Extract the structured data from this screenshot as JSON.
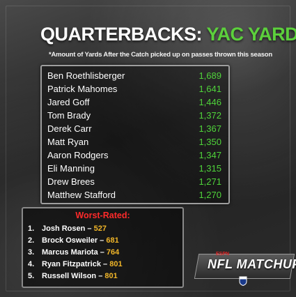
{
  "title": {
    "main": "QUARTERBACKS:",
    "accent": "YAC YARDS"
  },
  "subtitle": "*Amount of Yards After the Catch picked up on passes thrown this season",
  "top_list": [
    {
      "name": "Ben Roethlisberger",
      "value": "1,689"
    },
    {
      "name": "Patrick Mahomes",
      "value": "1,641"
    },
    {
      "name": "Jared Goff",
      "value": "1,446"
    },
    {
      "name": "Tom Brady",
      "value": "1,372"
    },
    {
      "name": "Derek Carr",
      "value": "1,367"
    },
    {
      "name": "Matt Ryan",
      "value": "1,350"
    },
    {
      "name": "Aaron Rodgers",
      "value": "1,347"
    },
    {
      "name": "Eli Manning",
      "value": "1,315"
    },
    {
      "name": "Drew Brees",
      "value": "1,271"
    },
    {
      "name": "Matthew Stafford",
      "value": "1,270"
    }
  ],
  "worst": {
    "title": "Worst-Rated:",
    "items": [
      {
        "num": "1.",
        "name": "Josh Rosen – ",
        "value": "527"
      },
      {
        "num": "2.",
        "name": "Brock Osweiler – ",
        "value": "681"
      },
      {
        "num": "3.",
        "name": "Marcus Mariota – ",
        "value": "764"
      },
      {
        "num": "4.",
        "name": "Ryan Fitzpatrick – ",
        "value": "801"
      },
      {
        "num": "5.",
        "name": "Russell Wilson – ",
        "value": "801"
      }
    ]
  },
  "logo": {
    "text": "NFL MATCHUP",
    "tag": "ESPN",
    "icon": "nfl-shield-icon"
  },
  "colors": {
    "accent_green": "#5cd03c",
    "value_green": "#4fd43a",
    "worst_red": "#ff2a2a",
    "worst_value": "#f0b528"
  }
}
